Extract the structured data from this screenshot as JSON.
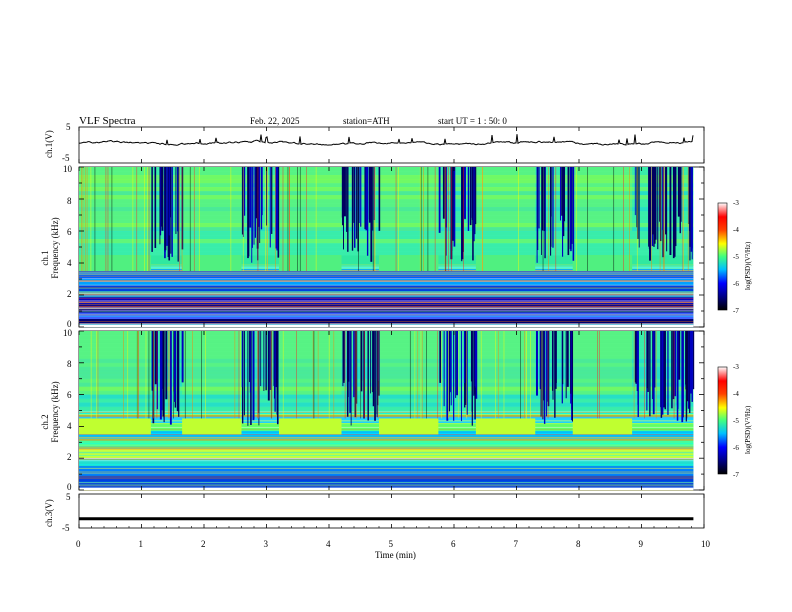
{
  "header": {
    "title": "VLF Spectra",
    "date": "Feb. 22, 2025",
    "station": "station=ATH",
    "start": "start UT = 1 : 50: 0"
  },
  "chart_data": [
    {
      "type": "line",
      "panel": "ch1-waveform",
      "ylabel": "ch.1(V)",
      "ylim": [
        -5,
        5
      ],
      "y_ticks": [
        "5",
        "-5"
      ],
      "xlim": [
        0,
        10
      ],
      "series": [
        {
          "values": [
            -0.2,
            -0.1,
            -0.3,
            -0.2,
            -0.4,
            -0.1,
            -0.2,
            -0.3,
            -0.1,
            -0.2,
            -0.2
          ]
        }
      ]
    },
    {
      "type": "heatmap",
      "panel": "ch1-spectrogram",
      "ylabel": "ch.1\nFrequency (kHz)",
      "ylim": [
        0,
        10
      ],
      "y_ticks": [
        "0",
        "2",
        "4",
        "6",
        "8",
        "10"
      ],
      "xlim": [
        0,
        9.83
      ],
      "colorbar": {
        "label": "log(PSD)(V²/Hz)",
        "range": [
          -7,
          -3
        ],
        "ticks": [
          "-3",
          "-4",
          "-5",
          "-6",
          "-7"
        ]
      },
      "transmitter_bursts_min": [
        [
          0.0,
          1.15
        ],
        [
          1.65,
          2.6
        ],
        [
          3.2,
          4.2
        ],
        [
          4.8,
          5.75
        ],
        [
          6.35,
          7.3
        ],
        [
          7.9,
          8.85
        ]
      ]
    },
    {
      "type": "heatmap",
      "panel": "ch2-spectrogram",
      "ylabel": "ch.2\nFrequency (kHz)",
      "ylim": [
        0,
        10
      ],
      "y_ticks": [
        "0",
        "2",
        "4",
        "6",
        "8",
        "10"
      ],
      "xlim": [
        0,
        9.83
      ],
      "colorbar": {
        "label": "log(PSD)(V²/Hz)",
        "range": [
          -7,
          -3
        ],
        "ticks": [
          "-3",
          "-4",
          "-5",
          "-6",
          "-7"
        ]
      },
      "transmitter_bursts_min": [
        [
          0.0,
          1.15
        ],
        [
          1.65,
          2.6
        ],
        [
          3.2,
          4.2
        ],
        [
          4.8,
          5.75
        ],
        [
          6.35,
          7.3
        ],
        [
          7.9,
          8.85
        ]
      ]
    },
    {
      "type": "line",
      "panel": "ch3-waveform",
      "ylabel": "ch.3(V)",
      "ylim": [
        -5,
        5
      ],
      "y_ticks": [
        "5",
        "-5"
      ],
      "xlim": [
        0,
        10
      ],
      "series": [
        {
          "values": [
            -2.3,
            -2.3,
            -2.3,
            -2.3,
            -2.3,
            -2.3,
            -2.3,
            -2.3,
            -2.3,
            -2.3,
            -2.3
          ]
        }
      ]
    }
  ],
  "x_axis": {
    "label": "Time (min)",
    "ticks": [
      "0",
      "1",
      "2",
      "3",
      "4",
      "5",
      "6",
      "7",
      "8",
      "9",
      "10"
    ]
  },
  "colormap": [
    "#000080",
    "#0000ff",
    "#0080ff",
    "#00e0ff",
    "#40ff90",
    "#c0ff00",
    "#ffff00",
    "#ff8000",
    "#ff0000",
    "#ff8080",
    "#ffffff"
  ]
}
